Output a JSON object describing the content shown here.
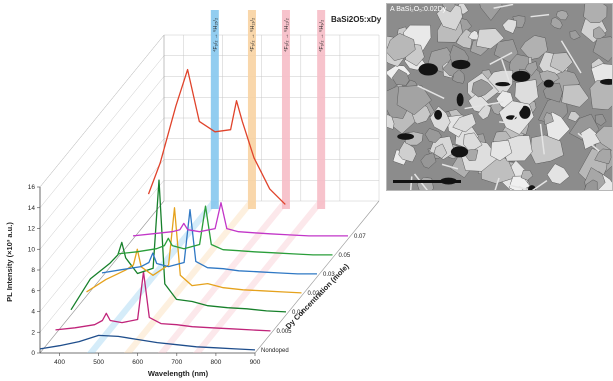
{
  "chart_data": {
    "type": "line",
    "subtype": "3d-waterfall",
    "formula": "BaSi2O5:xDy",
    "xlabel": "Wavelength (nm)",
    "ylabel": "PL Intensity (×10³ a.u.)",
    "zlabel": "Dy Concentration (mole)",
    "xlim": [
      350,
      900
    ],
    "ylim": [
      0,
      16
    ],
    "xticks": [
      "400",
      "500",
      "600",
      "700",
      "800",
      "900"
    ],
    "yticks": [
      "0",
      "2",
      "4",
      "6",
      "8",
      "10",
      "12",
      "14",
      "16"
    ],
    "transitions": [
      {
        "label": "⁴F₉/₂ → ⁶H₁₅/₂",
        "wavelength": 480,
        "color": "#86c8ee"
      },
      {
        "label": "⁴F₉/₂ → ⁶H₁₃/₂",
        "wavelength": 575,
        "color": "#f8d3a2"
      },
      {
        "label": "⁴F₉/₂ → ⁶H₁₁/₂",
        "wavelength": 662,
        "color": "#f6bcc6"
      },
      {
        "label": "⁴F₉/₂ → ⁶H₉/₂",
        "wavelength": 752,
        "color": "#f6bcc6"
      }
    ],
    "series": [
      {
        "name": "Nondoped",
        "color": "#1f4e8c",
        "x": [
          350,
          400,
          450,
          500,
          550,
          600,
          650,
          700,
          750,
          800,
          850,
          900
        ],
        "y": [
          0.4,
          0.7,
          1.1,
          1.7,
          1.6,
          1.3,
          1.0,
          0.8,
          0.6,
          0.5,
          0.4,
          0.3
        ]
      },
      {
        "name": "0.005",
        "color": "#c0247a",
        "x": [
          350,
          400,
          450,
          470,
          480,
          490,
          520,
          560,
          575,
          590,
          620,
          660,
          700,
          750,
          800,
          850,
          900
        ],
        "y": [
          0.4,
          0.6,
          0.9,
          1.3,
          2.0,
          1.3,
          1.1,
          1.4,
          6.0,
          1.6,
          1.0,
          0.9,
          0.7,
          0.6,
          0.5,
          0.4,
          0.3
        ]
      },
      {
        "name": "0.01",
        "color": "#17802b",
        "x": [
          350,
          400,
          450,
          470,
          480,
          490,
          520,
          560,
          575,
          590,
          620,
          660,
          700,
          750,
          800,
          850,
          900
        ],
        "y": [
          0.5,
          3.5,
          5.0,
          5.8,
          7.0,
          5.5,
          4.0,
          4.5,
          13.0,
          3.0,
          1.5,
          1.3,
          0.9,
          0.7,
          0.6,
          0.4,
          0.3
        ]
      },
      {
        "name": "0.02",
        "color": "#e5a21d",
        "x": [
          350,
          400,
          450,
          470,
          480,
          490,
          520,
          560,
          575,
          590,
          620,
          660,
          700,
          750,
          800,
          850,
          900
        ],
        "y": [
          0.4,
          1.6,
          2.5,
          3.0,
          4.5,
          2.8,
          2.0,
          3.0,
          8.5,
          2.0,
          1.0,
          1.2,
          0.8,
          0.6,
          0.5,
          0.4,
          0.3
        ]
      },
      {
        "name": "0.03",
        "color": "#2f78c4",
        "x": [
          350,
          400,
          450,
          470,
          480,
          490,
          520,
          560,
          575,
          590,
          620,
          660,
          700,
          750,
          800,
          850,
          900
        ],
        "y": [
          0.4,
          0.7,
          1.0,
          1.4,
          2.3,
          1.3,
          1.0,
          1.4,
          6.5,
          1.5,
          0.9,
          0.8,
          0.6,
          0.5,
          0.4,
          0.3,
          0.3
        ]
      },
      {
        "name": "0.05",
        "color": "#2a9e3a",
        "x": [
          350,
          400,
          450,
          470,
          480,
          490,
          520,
          560,
          575,
          590,
          620,
          660,
          700,
          750,
          800,
          850,
          900
        ],
        "y": [
          0.4,
          0.6,
          0.9,
          1.2,
          1.9,
          1.2,
          0.9,
          1.3,
          5.0,
          1.3,
          0.8,
          0.7,
          0.6,
          0.5,
          0.4,
          0.3,
          0.3
        ]
      },
      {
        "name": "0.07",
        "color": "#c236c8",
        "x": [
          350,
          400,
          450,
          470,
          480,
          490,
          520,
          560,
          575,
          590,
          620,
          660,
          700,
          750,
          800,
          850,
          900
        ],
        "y": [
          0.3,
          0.5,
          0.7,
          0.9,
          1.5,
          0.9,
          0.7,
          1.0,
          3.5,
          1.0,
          0.7,
          0.6,
          0.5,
          0.4,
          0.3,
          0.3,
          0.3
        ]
      },
      {
        "name": "",
        "color": "#e0432b",
        "x": [
          350,
          380,
          420,
          450,
          480,
          520,
          560,
          575,
          590,
          620,
          660,
          700
        ],
        "y": [
          2.5,
          5.5,
          11.0,
          14.5,
          9.5,
          8.5,
          8.7,
          11.5,
          9.5,
          6.0,
          3.0,
          1.5
        ]
      }
    ]
  },
  "inset": {
    "label": "A   BaSi₂O₅:0.02Dy"
  }
}
